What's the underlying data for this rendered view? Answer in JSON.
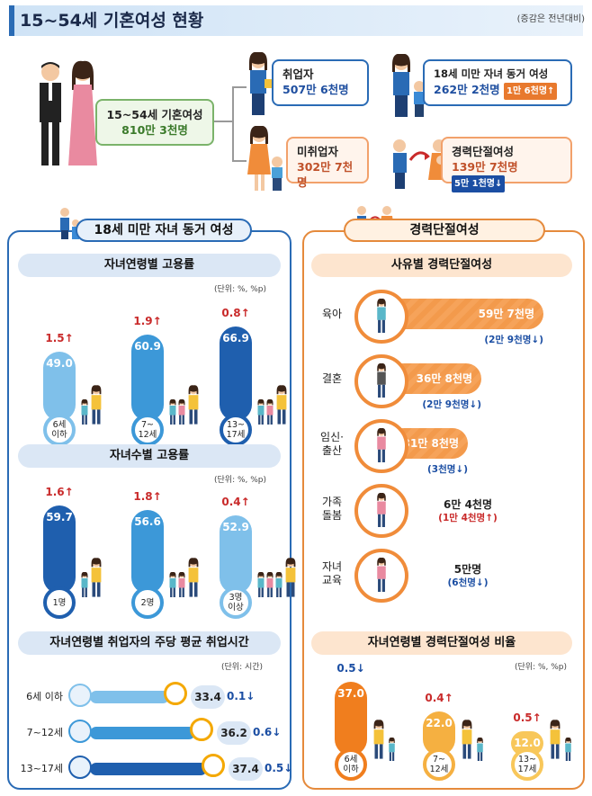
{
  "header": {
    "title": "15~54세 기혼여성 현황",
    "note": "(증감은 전년대비)"
  },
  "overview": {
    "married": {
      "label": "15~54세 기혼여성",
      "value": "810만 3천명"
    },
    "employed": {
      "label": "취업자",
      "value": "507만 6천명"
    },
    "with_child": {
      "label": "18세 미만 자녀 동거 여성",
      "value": "262만 2천명",
      "change": "1만 6천명↑"
    },
    "unemployed": {
      "label": "미취업자",
      "value": "302만 7천명"
    },
    "career_break": {
      "label": "경력단절여성",
      "value": "139만 7천명",
      "change": "5만 1천명↓"
    }
  },
  "left_panel": {
    "title": "18세 미만 자녀 동거 여성"
  },
  "right_panel": {
    "title": "경력단절여성"
  },
  "colors": {
    "blue": "#2a6bb5",
    "orange": "#f08c3a",
    "up": "#c92a2a",
    "down": "#1b4ea3"
  },
  "chart_data": [
    {
      "type": "bar",
      "title": "자녀연령별 고용률",
      "unit": "(단위: %, %p)",
      "categories": [
        "6세 이하",
        "7~12세",
        "13~17세"
      ],
      "category_labels": [
        [
          "6세",
          "이하"
        ],
        [
          "7~",
          "12세"
        ],
        [
          "13~",
          "17세"
        ]
      ],
      "values": [
        49.0,
        60.9,
        66.9
      ],
      "value_labels": [
        "49.0",
        "60.9",
        "66.9"
      ],
      "changes": [
        "1.5↑",
        "1.9↑",
        "0.8↑"
      ]
    },
    {
      "type": "bar",
      "title": "자녀수별 고용률",
      "unit": "(단위: %, %p)",
      "categories": [
        "1명",
        "2명",
        "3명 이상"
      ],
      "category_labels": [
        [
          "1명"
        ],
        [
          "2명"
        ],
        [
          "3명",
          "이상"
        ]
      ],
      "values": [
        59.7,
        56.6,
        52.9
      ],
      "value_labels": [
        "59.7",
        "56.6",
        "52.9"
      ],
      "changes": [
        "1.6↑",
        "1.8↑",
        "0.4↑"
      ]
    },
    {
      "type": "bar",
      "title": "자녀연령별 취업자의 주당 평균 취업시간",
      "unit": "(단위: 시간)",
      "categories": [
        "6세 이하",
        "7~12세",
        "13~17세"
      ],
      "values": [
        33.4,
        36.2,
        37.4
      ],
      "value_labels": [
        "33.4",
        "36.2",
        "37.4"
      ],
      "changes": [
        "0.1↓",
        "0.6↓",
        "0.5↓"
      ]
    },
    {
      "type": "bar",
      "title": "사유별 경력단절여성",
      "categories": [
        "육아",
        "결혼",
        "임신·출산",
        "가족돌봄",
        "자녀교육"
      ],
      "category_labels": [
        [
          "육아"
        ],
        [
          "결혼"
        ],
        [
          "임신·",
          "출산"
        ],
        [
          "가족",
          "돌봄"
        ],
        [
          "자녀",
          "교육"
        ]
      ],
      "values_thousand": [
        597,
        368,
        318,
        64,
        50
      ],
      "value_labels": [
        "59만 7천명",
        "36만 8천명",
        "31만 8천명",
        "6만 4천명",
        "5만명"
      ],
      "changes": [
        "(2만 9천명↓)",
        "(2만 9천명↓)",
        "(3천명↓)",
        "(1만 4천명↑)",
        "(6천명↓)"
      ]
    },
    {
      "type": "bar",
      "title": "자녀연령별 경력단절여성 비율",
      "unit": "(단위: %, %p)",
      "categories": [
        "6세 이하",
        "7~12세",
        "13~17세"
      ],
      "category_labels": [
        [
          "6세",
          "이하"
        ],
        [
          "7~",
          "12세"
        ],
        [
          "13~",
          "17세"
        ]
      ],
      "values": [
        37.0,
        22.0,
        12.0
      ],
      "value_labels": [
        "37.0",
        "22.0",
        "12.0"
      ],
      "changes": [
        "0.5↓",
        "0.4↑",
        "0.5↑"
      ]
    }
  ]
}
